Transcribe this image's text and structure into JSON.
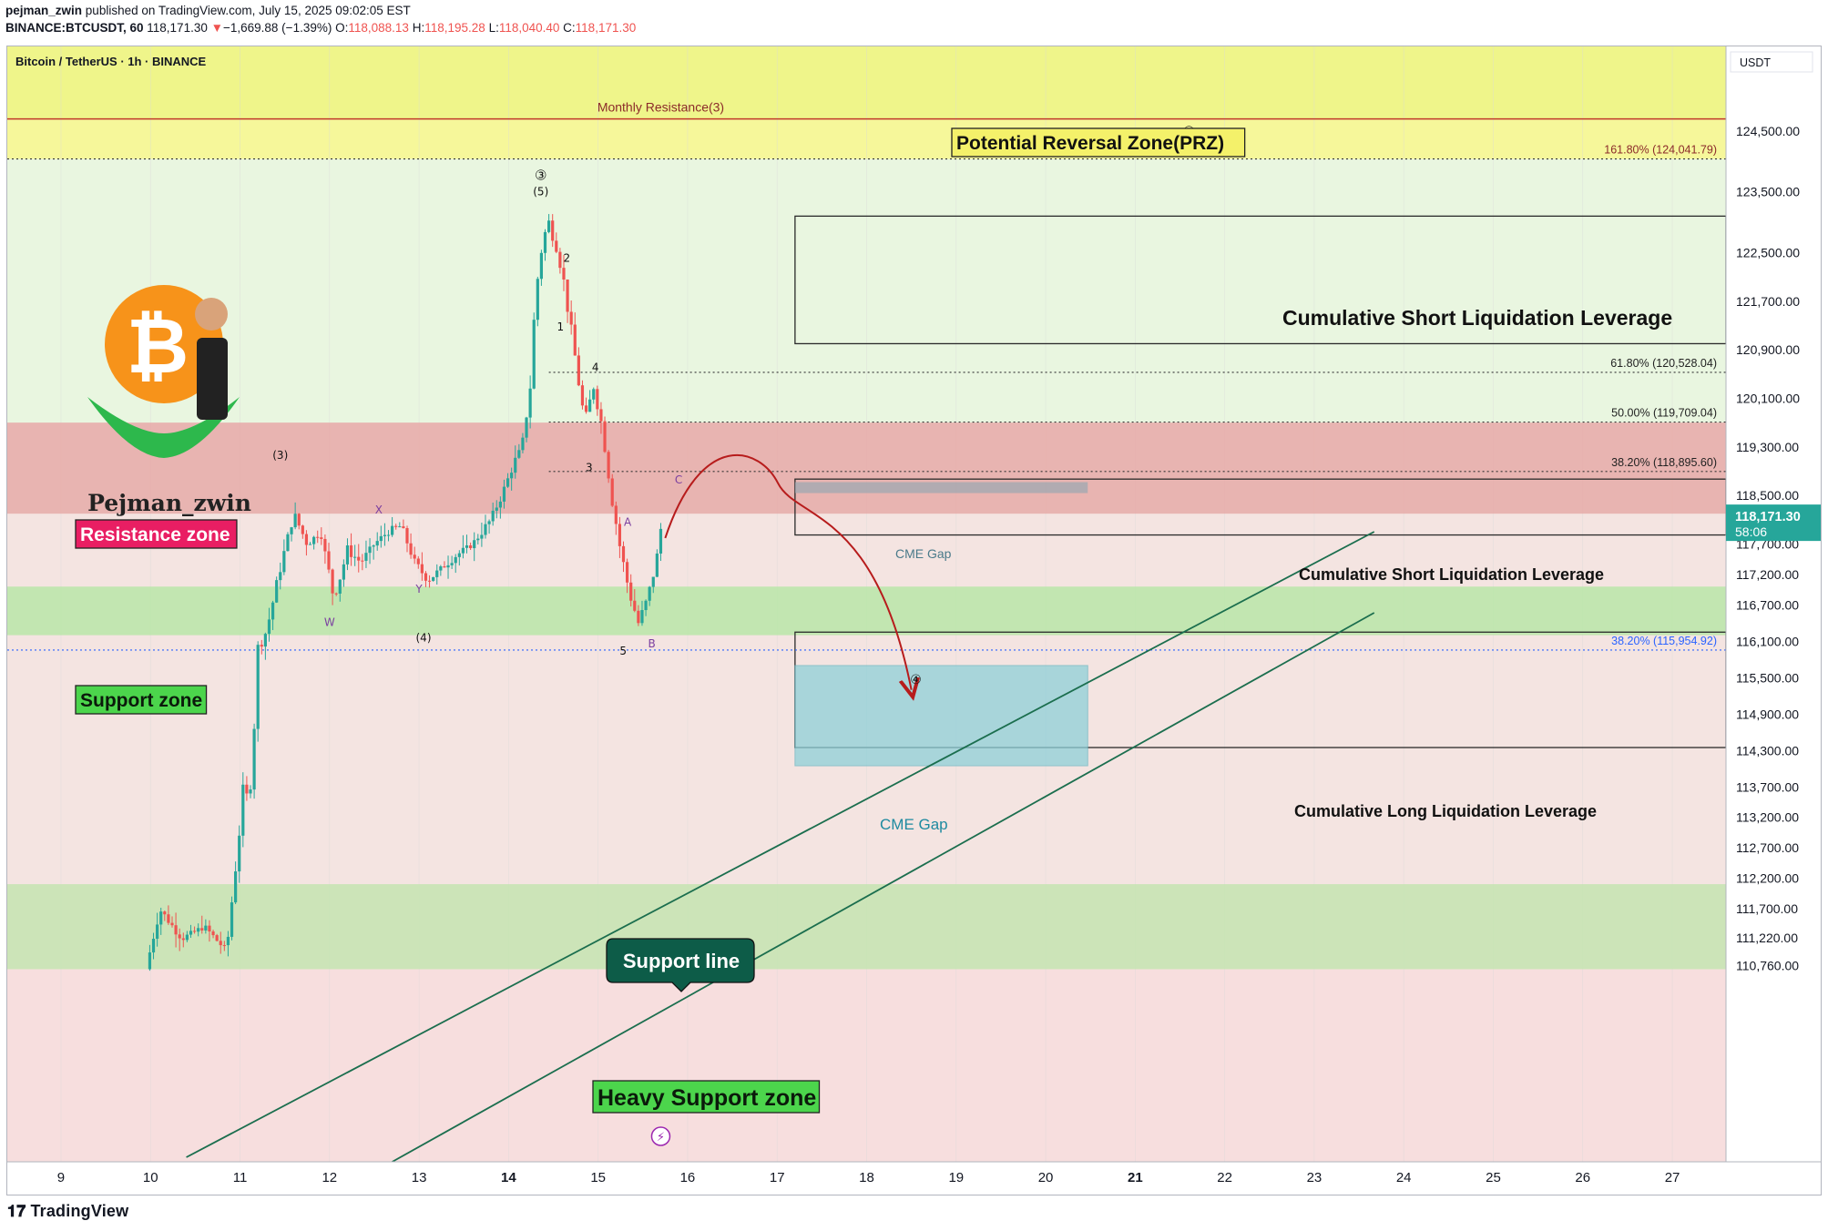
{
  "header": {
    "user": "pejman_zwin",
    "published": "published on TradingView.com, July 15, 2025 09:02:05 EST",
    "symbol": "BINANCE:BTCUSDT, 60",
    "last": "118,171.30",
    "change": "−1,669.88 (−1.39%)",
    "o_label": "O:",
    "o": "118,088.13",
    "h_label": "H:",
    "h": "118,195.28",
    "l_label": "L:",
    "l": "118,040.40",
    "c_label": "C:",
    "c": "118,171.30"
  },
  "legend_title": "Bitcoin / TetherUS · 1h · BINANCE",
  "currency": "USDT",
  "footer_brand": "TradingView",
  "logo_text": "Pejman_zwin",
  "colors": {
    "bull": "#26a69a",
    "bear": "#ef5350",
    "resistance": "#e8a8a8",
    "support": "#b9e6a8",
    "prz": "#eff58a",
    "cme": "#8fd0d8",
    "red_arrow": "#b71c1c",
    "channel": "#1b6e4e",
    "fib_blue": "#2962ff"
  },
  "chart_data": {
    "type": "candlestick",
    "title": "Bitcoin / TetherUS · 1h · BINANCE",
    "x_ticks": [
      "9",
      "10",
      "11",
      "12",
      "13",
      "14",
      "15",
      "16",
      "17",
      "18",
      "19",
      "20",
      "21",
      "22",
      "23",
      "24",
      "25",
      "26",
      "27"
    ],
    "x_range": [
      8.4,
      27.6
    ],
    "y_ticks": [
      "124,500.00",
      "123,500.00",
      "122,500.00",
      "121,700.00",
      "120,900.00",
      "120,100.00",
      "119,300.00",
      "118,500.00",
      "117,700.00",
      "117,200.00",
      "116,700.00",
      "116,100.00",
      "115,500.00",
      "114,900.00",
      "114,300.00",
      "113,700.00",
      "113,200.00",
      "112,700.00",
      "112,200.00",
      "111,700.00",
      "111,220.00",
      "110,760.00"
    ],
    "y_tick_values": [
      124500,
      123500,
      122500,
      121700,
      120900,
      120100,
      119300,
      118500,
      117700,
      117200,
      116700,
      116100,
      115500,
      114900,
      114300,
      113700,
      113200,
      112700,
      112200,
      111700,
      111220,
      110760
    ],
    "last_price": {
      "label": "118,171.30",
      "countdown": "58:06",
      "value": 118171.3
    },
    "price_path": [
      [
        9.95,
        110700
      ],
      [
        10.1,
        111700
      ],
      [
        10.35,
        111200
      ],
      [
        10.6,
        111400
      ],
      [
        10.85,
        111000
      ],
      [
        10.95,
        112400
      ],
      [
        11.05,
        113800
      ],
      [
        11.1,
        113300
      ],
      [
        11.2,
        115900
      ],
      [
        11.3,
        116300
      ],
      [
        11.45,
        117300
      ],
      [
        11.6,
        118200
      ],
      [
        11.75,
        117700
      ],
      [
        11.9,
        117900
      ],
      [
        12.05,
        116800
      ],
      [
        12.2,
        117600
      ],
      [
        12.35,
        117400
      ],
      [
        12.5,
        117700
      ],
      [
        12.65,
        117900
      ],
      [
        12.8,
        118000
      ],
      [
        12.95,
        117400
      ],
      [
        13.1,
        117100
      ],
      [
        13.25,
        117300
      ],
      [
        13.4,
        117500
      ],
      [
        13.6,
        117700
      ],
      [
        13.8,
        118100
      ],
      [
        13.95,
        118600
      ],
      [
        14.05,
        119000
      ],
      [
        14.15,
        119300
      ],
      [
        14.25,
        120400
      ],
      [
        14.3,
        121800
      ],
      [
        14.38,
        122700
      ],
      [
        14.45,
        123000
      ],
      [
        14.55,
        122500
      ],
      [
        14.62,
        122000
      ],
      [
        14.7,
        121200
      ],
      [
        14.78,
        120400
      ],
      [
        14.85,
        119700
      ],
      [
        14.95,
        120300
      ],
      [
        15.05,
        119600
      ],
      [
        15.15,
        118500
      ],
      [
        15.25,
        117600
      ],
      [
        15.35,
        116900
      ],
      [
        15.45,
        116400
      ],
      [
        15.55,
        116800
      ],
      [
        15.65,
        117400
      ],
      [
        15.72,
        118171
      ]
    ],
    "price_levels": [
      {
        "name": "Monthly Resistance(3)",
        "value": 124700
      },
      {
        "name": "161.80% (124,041.79)",
        "value": 124041.79
      },
      {
        "name": "61.80% (120,528.04)",
        "value": 120528.04
      },
      {
        "name": "50.00% (119,709.04)",
        "value": 119709.04
      },
      {
        "name": "38.20% (118,895.60)",
        "value": 118895.6
      },
      {
        "name": "38.20% (115,954.92)",
        "value": 115954.92
      }
    ],
    "zones": [
      {
        "name": "Potential Reversal Zone(PRZ)",
        "from": 124041.79,
        "to": 124700
      },
      {
        "name": "Resistance zone",
        "from": 118200,
        "to": 119700
      },
      {
        "name": "Support zone",
        "from": 116200,
        "to": 117000
      },
      {
        "name": "Heavy Support zone",
        "from": 110700,
        "to": 112100
      }
    ],
    "liquidation_boxes": [
      {
        "name": "Cumulative Short Liquidation Leverage",
        "from": 121000,
        "to": 123100
      },
      {
        "name": "Cumulative Short Liquidation Leverage",
        "from": 117850,
        "to": 118770
      },
      {
        "name": "Cumulative Long Liquidation Leverage",
        "from": 114350,
        "to": 116250
      }
    ],
    "cme_gaps": [
      {
        "name": "CME Gap",
        "from": 118600,
        "to": 118720
      },
      {
        "name": "CME Gap",
        "from": 114050,
        "to": 115700
      }
    ],
    "wave_labels": [
      "③",
      "(5)",
      "2",
      "1",
      "4",
      "3",
      "5",
      "A",
      "B",
      "C",
      "(3)",
      "X",
      "W",
      "Y",
      "(4)",
      "④",
      "⑤"
    ],
    "annotations": [
      "Support line"
    ]
  }
}
